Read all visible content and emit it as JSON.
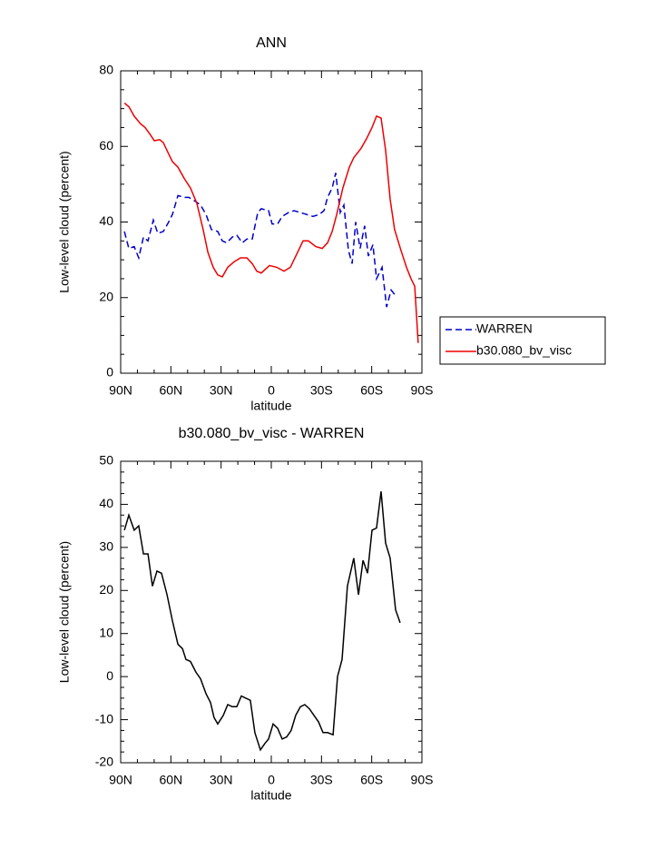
{
  "chart_data": [
    {
      "type": "line",
      "title": "ANN",
      "xlabel": "latitude",
      "ylabel": "Low-level cloud (percent)",
      "xlim": [
        90,
        -90
      ],
      "xticks": [
        {
          "value": 90,
          "label": "90N"
        },
        {
          "value": 60,
          "label": "60N"
        },
        {
          "value": 30,
          "label": "30N"
        },
        0,
        {
          "value": -30,
          "label": "30S"
        },
        {
          "value": -60,
          "label": "60S"
        },
        {
          "value": -90,
          "label": "90S"
        }
      ],
      "ylim": [
        0,
        80
      ],
      "yticks": [
        0,
        20,
        40,
        60,
        80
      ],
      "legend": "right",
      "series": [
        {
          "name": "WARREN",
          "color": "#0000cc",
          "style": "dashed",
          "x": [
            87.8,
            85.1,
            81.9,
            79.2,
            76.4,
            73.7,
            70.5,
            67.8,
            64.5,
            61.3,
            59.1,
            55.8,
            52.0,
            49.3,
            45.5,
            42.3,
            39.0,
            35.8,
            32.0,
            29.3,
            26.6,
            23.3,
            20.6,
            17.3,
            14.6,
            11.4,
            8.1,
            6.0,
            1.6,
            -0.5,
            -3.8,
            -6.5,
            -10.3,
            -13.6,
            -17.4,
            -21.1,
            -24.9,
            -28.7,
            -31.5,
            -33.6,
            -36.4,
            -38.5,
            -41.2,
            -43.4,
            -46.1,
            -48.3,
            -50.4,
            -53.1,
            -55.8,
            -58.0,
            -60.7,
            -62.9,
            -66.2,
            -68.9,
            -71.6,
            -74.3
          ],
          "values": [
            37.5,
            33,
            33.5,
            30.5,
            36,
            35,
            40.5,
            37,
            37.5,
            40,
            42,
            47,
            46.5,
            46.5,
            45.5,
            44.5,
            42,
            38,
            37.5,
            35,
            34.5,
            36,
            36.5,
            34.5,
            35.5,
            35.5,
            42.5,
            43.5,
            43,
            39.5,
            39.5,
            41.5,
            42.5,
            43,
            42.5,
            42,
            41.5,
            42,
            43,
            46.5,
            49,
            53,
            42.5,
            44.5,
            32.5,
            29,
            40,
            33,
            39,
            31,
            34,
            25,
            28,
            17.5,
            22,
            20.5
          ]
        },
        {
          "name": "b30.080_bv_visc",
          "color": "#ee0000",
          "style": "solid",
          "x": [
            87.8,
            85.1,
            81.9,
            78.1,
            75.4,
            72.1,
            69.9,
            66.7,
            64.5,
            61.3,
            59.1,
            55.8,
            52.0,
            48.3,
            44.5,
            40.7,
            37.9,
            34.7,
            32.0,
            29.3,
            26.0,
            22.2,
            18.4,
            14.6,
            11.4,
            8.7,
            6.0,
            1.1,
            -3.3,
            -7.6,
            -11.4,
            -15.2,
            -19.0,
            -22.2,
            -26.6,
            -30.4,
            -33.6,
            -36.4,
            -39.1,
            -42.8,
            -46.6,
            -49.3,
            -53.7,
            -56.9,
            -60.2,
            -62.9,
            -65.6,
            -68.3,
            -71.0,
            -73.7,
            -77.5,
            -80.8,
            -83.5,
            -85.7,
            -87.8
          ],
          "values": [
            71.5,
            70.5,
            68,
            66,
            65,
            63,
            61.5,
            61.8,
            61,
            58,
            56,
            54.5,
            51.5,
            49,
            45,
            38,
            32,
            28,
            26,
            25.5,
            28,
            29.5,
            30.5,
            30.5,
            29,
            27,
            26.5,
            28.5,
            28,
            27,
            28,
            31.5,
            35,
            35,
            33.5,
            33,
            34.5,
            37.5,
            42,
            49,
            54.5,
            57,
            59.5,
            62,
            65,
            68,
            67.5,
            59,
            46,
            38,
            32.5,
            28,
            25,
            23,
            8
          ]
        }
      ]
    },
    {
      "type": "line",
      "title": "b30.080_bv_visc - WARREN",
      "xlabel": "latitude",
      "ylabel": "Low-level cloud (percent)",
      "xlim": [
        90,
        -90
      ],
      "xticks": [
        {
          "value": 90,
          "label": "90N"
        },
        {
          "value": 60,
          "label": "60N"
        },
        {
          "value": 30,
          "label": "30N"
        },
        0,
        {
          "value": -30,
          "label": "30S"
        },
        {
          "value": -60,
          "label": "60S"
        },
        {
          "value": -90,
          "label": "90S"
        }
      ],
      "ylim": [
        -20,
        50
      ],
      "yticks": [
        -20,
        -10,
        0,
        10,
        20,
        30,
        40,
        50
      ],
      "series": [
        {
          "color": "#000000",
          "style": "solid",
          "x": [
            87.8,
            85.1,
            81.9,
            79.2,
            76.4,
            73.7,
            71.0,
            68.3,
            65.6,
            62.3,
            59.1,
            55.8,
            53.1,
            51.0,
            48.3,
            45.0,
            42.3,
            39.0,
            36.3,
            34.2,
            32.0,
            28.7,
            26.0,
            23.3,
            20.6,
            17.9,
            15.2,
            12.5,
            9.8,
            6.5,
            3.8,
            1.6,
            -1.1,
            -3.8,
            -6.5,
            -9.2,
            -11.9,
            -14.6,
            -17.4,
            -20.0,
            -22.8,
            -25.5,
            -28.2,
            -30.9,
            -33.6,
            -36.9,
            -39.6,
            -42.3,
            -45.5,
            -49.3,
            -52.1,
            -54.8,
            -57.5,
            -60.2,
            -62.9,
            -65.6,
            -68.3,
            -71.0,
            -74.3,
            -77.0
          ],
          "values": [
            34,
            37.5,
            34,
            35,
            28.5,
            28.5,
            21,
            24.5,
            24,
            19,
            13,
            7.5,
            6.5,
            4,
            3.5,
            1,
            -0.5,
            -4,
            -6,
            -9.5,
            -11,
            -9,
            -6.5,
            -7,
            -7,
            -4.5,
            -5,
            -5.5,
            -13,
            -17,
            -15.5,
            -14.5,
            -11,
            -12,
            -14.5,
            -14,
            -12.5,
            -9,
            -7,
            -6.5,
            -7.5,
            -9,
            -10.5,
            -13,
            -13,
            -13.5,
            0,
            4,
            21,
            27.5,
            19,
            27,
            24,
            34,
            34.5,
            43,
            31,
            27.5,
            15.5,
            12.5
          ]
        }
      ]
    }
  ]
}
